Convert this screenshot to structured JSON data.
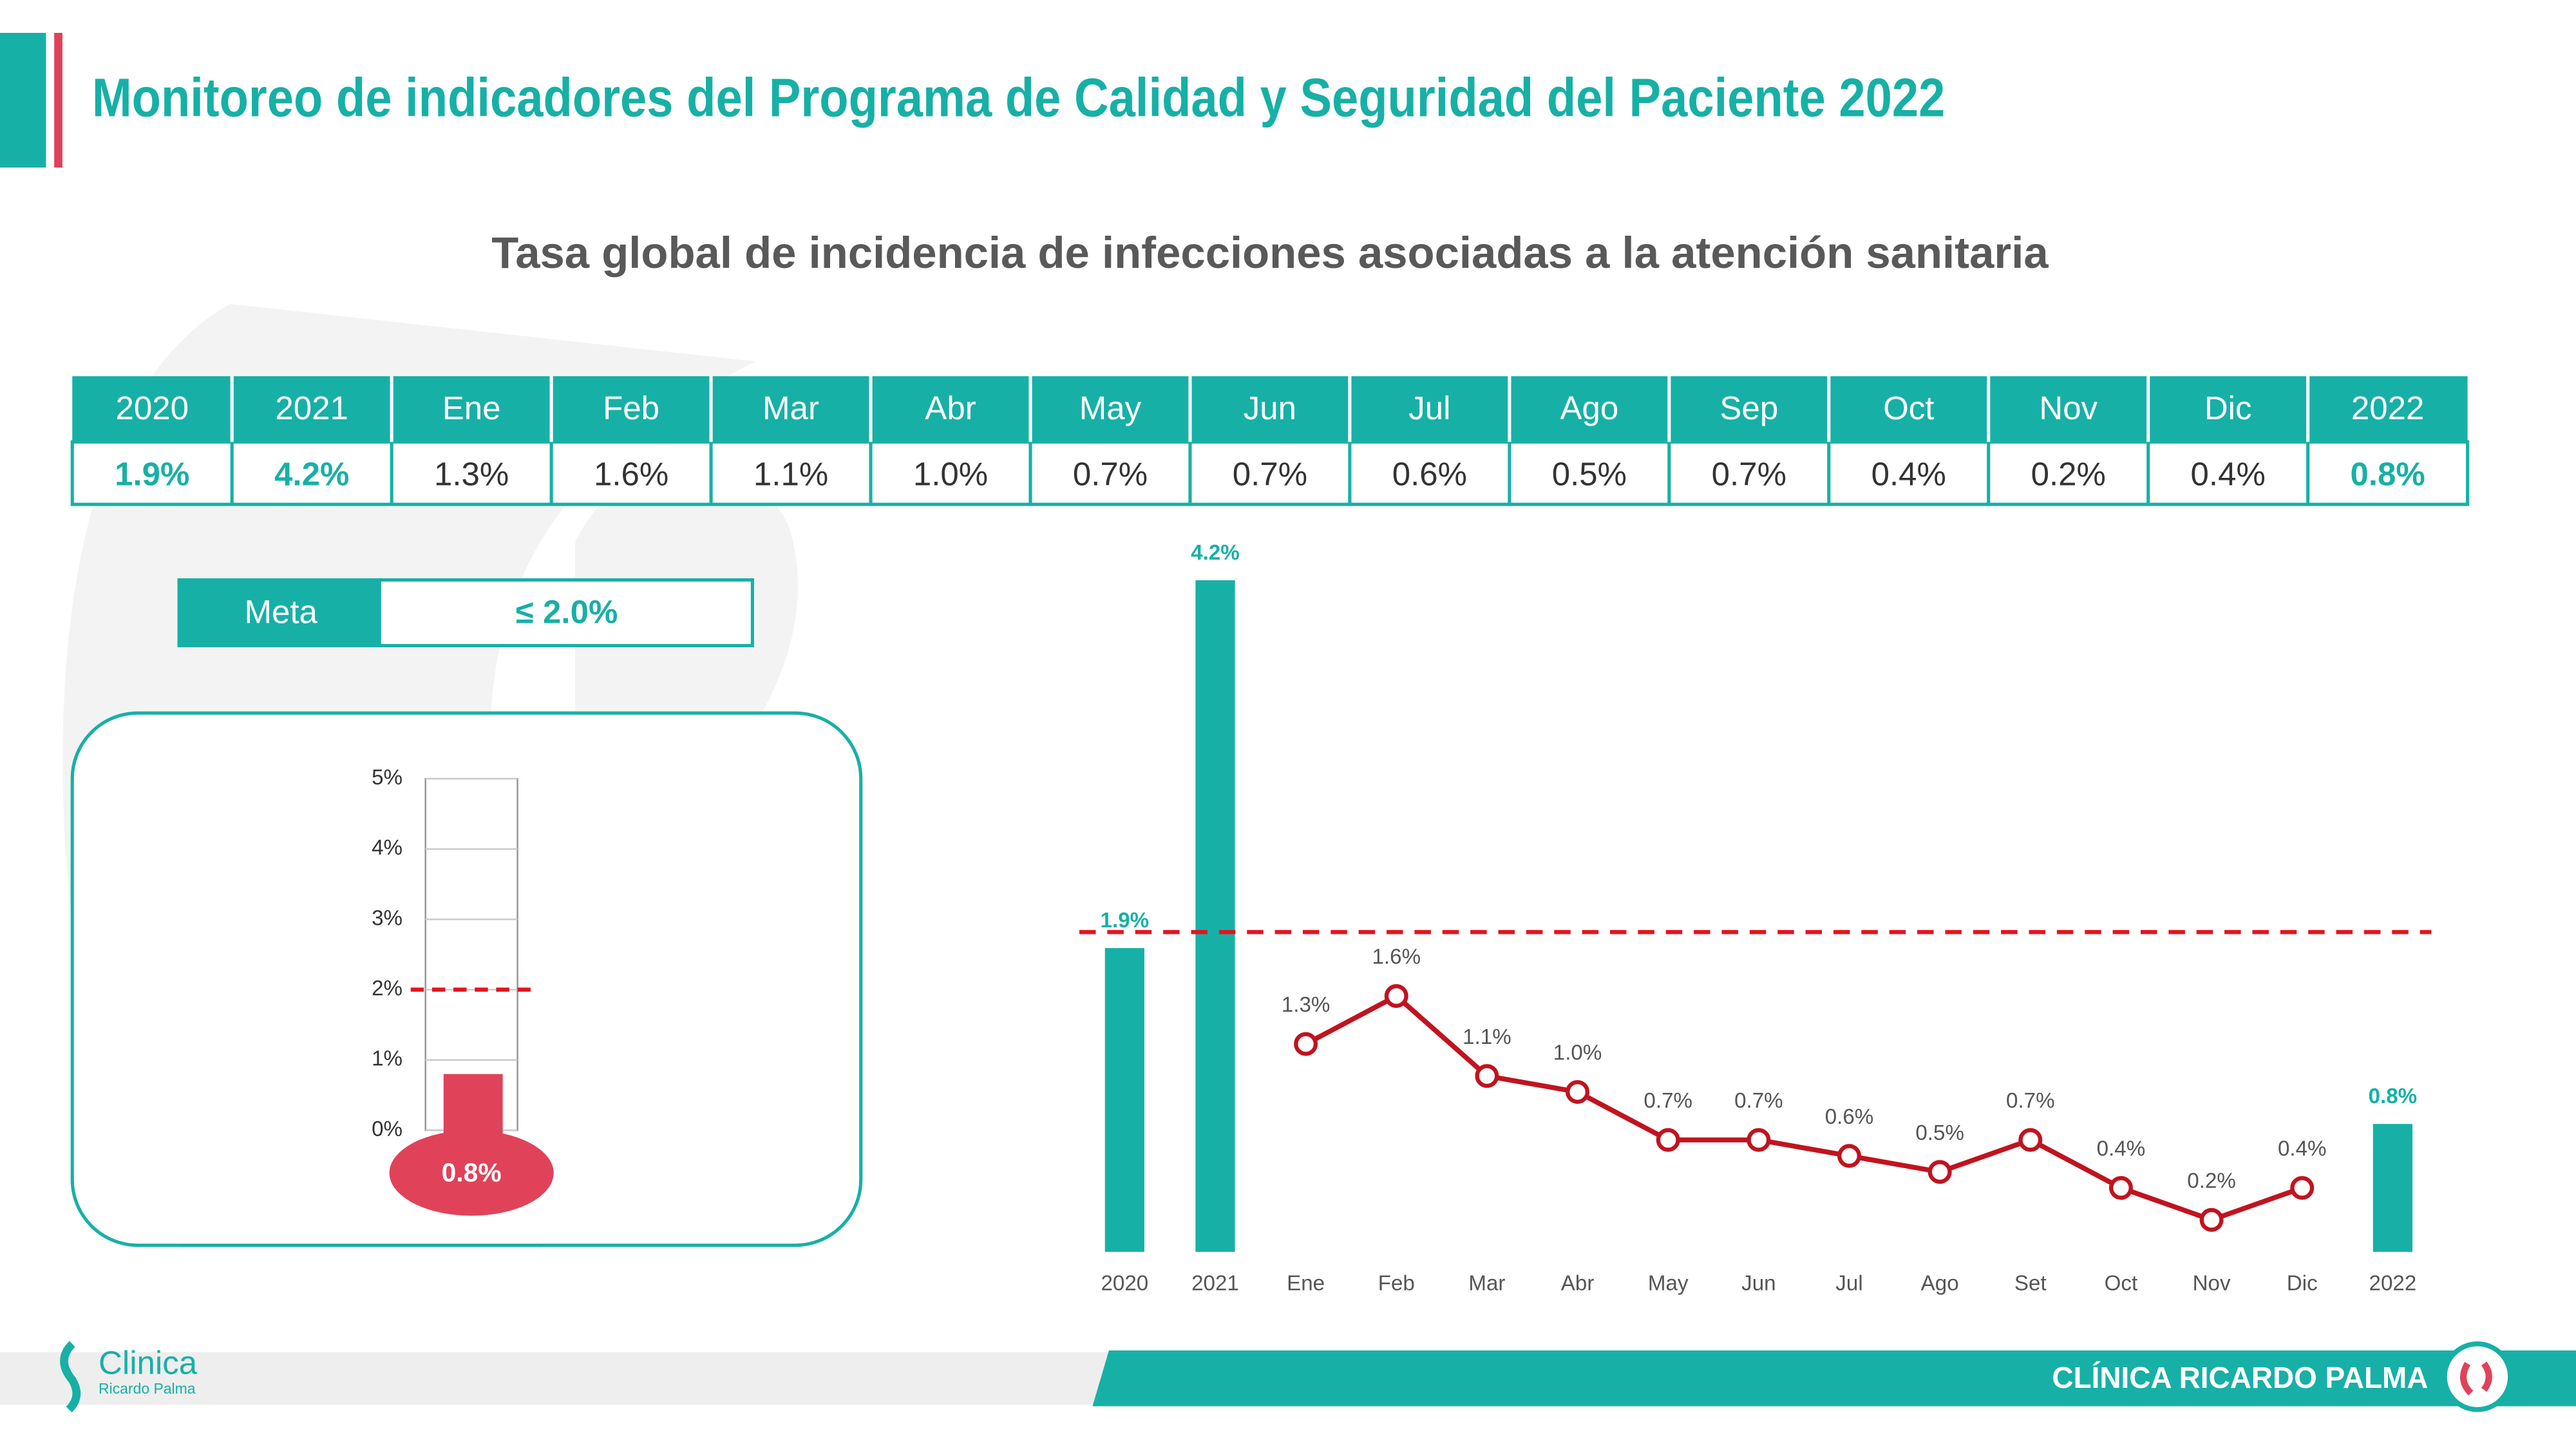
{
  "header": {
    "title": "Monitoreo de indicadores del Programa de Calidad y Seguridad del Paciente 2022",
    "subtitle": "Tasa global de incidencia de infecciones asociadas a la atención sanitaria"
  },
  "table": {
    "headers": [
      "2020",
      "2021",
      "Ene",
      "Feb",
      "Mar",
      "Abr",
      "May",
      "Jun",
      "Jul",
      "Ago",
      "Sep",
      "Oct",
      "Nov",
      "Dic",
      "2022"
    ],
    "values": [
      "1.9%",
      "4.2%",
      "1.3%",
      "1.6%",
      "1.1%",
      "1.0%",
      "0.7%",
      "0.7%",
      "0.6%",
      "0.5%",
      "0.7%",
      "0.4%",
      "0.2%",
      "0.4%",
      "0.8%"
    ]
  },
  "meta": {
    "label": "Meta",
    "value": "≤ 2.0%"
  },
  "chart_data": [
    {
      "type": "thermometer",
      "values": [
        0.8
      ],
      "value_labels": [
        "0.8%"
      ],
      "color": "#e0425a",
      "threshold": 2,
      "threshold_color": "#e3141d",
      "ylim": [
        0,
        5
      ],
      "yticks": [
        {
          "value": 0,
          "label": "0%"
        },
        {
          "value": 1,
          "label": "1%"
        },
        {
          "value": 2,
          "label": "2%"
        },
        {
          "value": 3,
          "label": "3%"
        },
        {
          "value": 4,
          "label": "4%"
        },
        {
          "value": 5,
          "label": "5%"
        }
      ],
      "grid": true
    },
    {
      "type": "combo",
      "categories": [
        "2020",
        "2021",
        "Ene",
        "Feb",
        "Mar",
        "Abr",
        "May",
        "Jun",
        "Jul",
        "Ago",
        "Set",
        "Oct",
        "Nov",
        "Dic",
        "2022"
      ],
      "ylim": [
        0,
        4.5
      ],
      "threshold": 2,
      "threshold_color": "#e3141d",
      "series": [
        {
          "kind": "bar",
          "color": "#17b0a6",
          "values": [
            1.9,
            4.2,
            null,
            null,
            null,
            null,
            null,
            null,
            null,
            null,
            null,
            null,
            null,
            null,
            0.8
          ],
          "value_labels": [
            "1.9%",
            "4.2%",
            null,
            null,
            null,
            null,
            null,
            null,
            null,
            null,
            null,
            null,
            null,
            null,
            "0.8%"
          ]
        },
        {
          "kind": "line",
          "color": "#c0141f",
          "values": [
            null,
            null,
            1.3,
            1.6,
            1.1,
            1.0,
            0.7,
            0.7,
            0.6,
            0.5,
            0.7,
            0.4,
            0.2,
            0.4,
            null
          ],
          "value_labels": [
            null,
            null,
            "1.3%",
            "1.6%",
            "1.1%",
            "1.0%",
            "0.7%",
            "0.7%",
            "0.6%",
            "0.5%",
            "0.7%",
            "0.4%",
            "0.2%",
            "0.4%",
            null
          ]
        }
      ]
    }
  ],
  "footer": {
    "logo_name": "Clinica",
    "logo_sub": "Ricardo Palma",
    "brand": "CLÍNICA RICARDO PALMA"
  }
}
